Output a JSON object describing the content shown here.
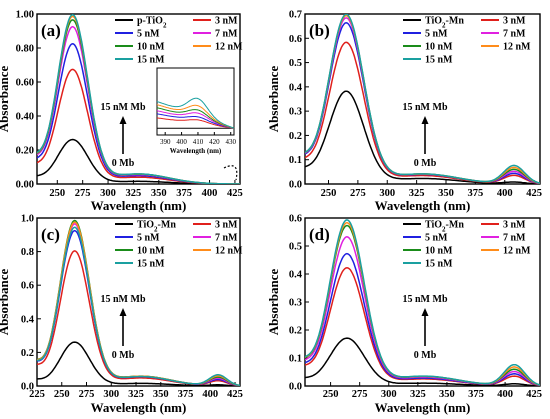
{
  "chart_data": [
    {
      "panel_label": "(a)",
      "type": "line",
      "xlabel": "Wavelength (nm)",
      "ylabel": "Absorbance",
      "xlim": [
        230,
        430
      ],
      "ylim": [
        0,
        1.0
      ],
      "xticks": [
        "250",
        "275",
        "300",
        "325",
        "350",
        "375",
        "400",
        "425"
      ],
      "yticks": [
        "0.00",
        "0.20",
        "0.40",
        "0.60",
        "0.80",
        "1.00"
      ],
      "legend": [
        "p-TiO",
        "3 nM",
        "5 nM",
        "7 nM",
        "10 nM",
        "12 nM",
        "15 nM"
      ],
      "legend_sub": "2",
      "peak_x": 265,
      "peak_values": [
        0.26,
        0.67,
        0.82,
        0.92,
        0.96,
        0.98,
        0.99
      ],
      "visible_band": 0.0,
      "arrow_top_label": "15 nM Mb",
      "arrow_bottom_label": "0 Mb",
      "inset": {
        "xlabel": "Wavelength (nm)",
        "xticks": [
          "390",
          "400",
          "410",
          "420",
          "430"
        ],
        "xlim": [
          385,
          432
        ]
      }
    },
    {
      "panel_label": "(b)",
      "type": "line",
      "xlabel": "Wavelength (nm)",
      "ylabel": "Absorbance",
      "xlim": [
        230,
        430
      ],
      "ylim": [
        0,
        0.7
      ],
      "xticks": [
        "250",
        "275",
        "300",
        "325",
        "350",
        "375",
        "400",
        "425"
      ],
      "yticks": [
        "0.0",
        "0.1",
        "0.2",
        "0.3",
        "0.4",
        "0.5",
        "0.6",
        "0.7"
      ],
      "legend": [
        "TiO",
        "3 nM",
        "5 nM",
        "7 nM",
        "10 nM",
        "12 nM",
        "15 nM"
      ],
      "legend_sub": "2",
      "legend_tail": "-Mn",
      "peak_x": 265,
      "peak_values": [
        0.38,
        0.58,
        0.66,
        0.68,
        0.69,
        0.69,
        0.695
      ],
      "visible_band": 0.075,
      "arrow_top_label": "15 nM Mb",
      "arrow_bottom_label": "0 Mb"
    },
    {
      "panel_label": "(c)",
      "type": "line",
      "xlabel": "Wavelength (nm)",
      "ylabel": "Absorbance",
      "xlim": [
        225,
        430
      ],
      "ylim": [
        0,
        1.0
      ],
      "xticks": [
        "225",
        "250",
        "275",
        "300",
        "325",
        "350",
        "375",
        "400",
        "425"
      ],
      "yticks": [
        "0.0",
        "0.2",
        "0.4",
        "0.6",
        "0.8",
        "1.0"
      ],
      "legend": [
        "TiO",
        "3 nM",
        "5 nM",
        "7 nM",
        "10 nM",
        "12 nM",
        "15 nM"
      ],
      "legend_sub": "2",
      "legend_tail": "-Mn",
      "peak_x": 263,
      "peak_values": [
        0.26,
        0.8,
        0.92,
        0.96,
        0.98,
        0.97,
        0.94
      ],
      "visible_band": 0.065,
      "arrow_top_label": "15 nM Mb",
      "arrow_bottom_label": "0 Mb"
    },
    {
      "panel_label": "(d)",
      "type": "line",
      "xlabel": "Wavelength (nm)",
      "ylabel": "Absorbance",
      "xlim": [
        228,
        430
      ],
      "ylim": [
        0,
        0.6
      ],
      "xticks": [
        "250",
        "275",
        "300",
        "325",
        "350",
        "375",
        "400",
        "425"
      ],
      "yticks": [
        "0.0",
        "0.1",
        "0.2",
        "0.3",
        "0.4",
        "0.5",
        "0.6"
      ],
      "legend": [
        "TiO",
        "3 nM",
        "5 nM",
        "7 nM",
        "10 nM",
        "12 nM",
        "15 nM"
      ],
      "legend_sub": "2",
      "legend_tail": "-Mn",
      "peak_x": 264,
      "peak_values": [
        0.17,
        0.42,
        0.47,
        0.53,
        0.57,
        0.58,
        0.59
      ],
      "visible_band": 0.075,
      "arrow_top_label": "15 nM Mb",
      "arrow_bottom_label": "0 Mb"
    }
  ],
  "series_colors": [
    "#000000",
    "#e0201c",
    "#2020e0",
    "#e020e0",
    "#1a8c1a",
    "#ff8c1a",
    "#1aa0a0"
  ]
}
